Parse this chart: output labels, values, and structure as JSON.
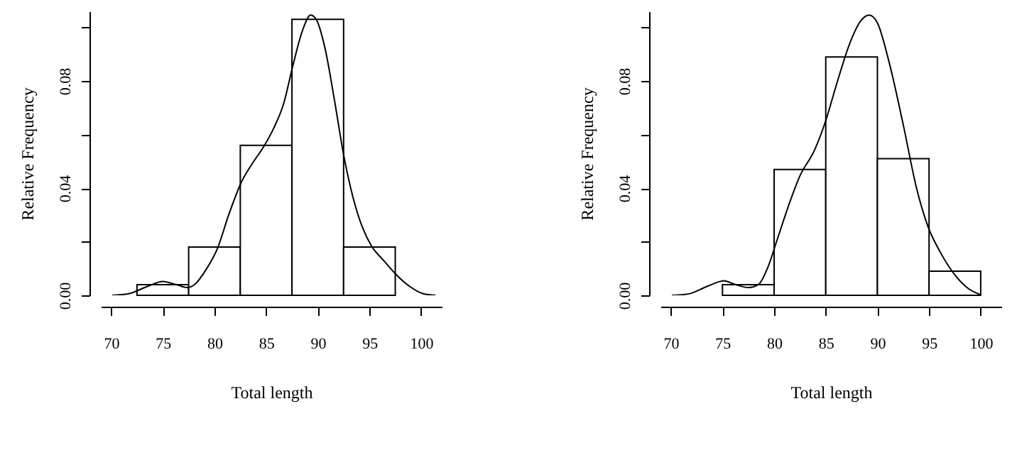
{
  "chart_data": [
    {
      "type": "histogram",
      "xlabel": "Total length",
      "ylabel": "Relative Frequency",
      "color": "#ffffff",
      "bins": [
        72.5,
        77.5,
        82.5,
        87.5,
        92.5,
        97.5
      ],
      "values": [
        0.004,
        0.018,
        0.056,
        0.103,
        0.018
      ],
      "series": [
        {
          "type": "line",
          "color": "#000000",
          "x": [
            70.1,
            71.7,
            73.5,
            75,
            76.2,
            77.4,
            78.1,
            79.2,
            80.3,
            81.4,
            82.6,
            83.7,
            84.8,
            85.7,
            86.7,
            87.6,
            88.5,
            89.3,
            89.8,
            90.7,
            91.6,
            92.5,
            93.4,
            94.3,
            95.2,
            96.4,
            97.5,
            98.9,
            100.2,
            101.4
          ],
          "values": [
            0,
            0.0006,
            0.0033,
            0.0052,
            0.0041,
            0.0029,
            0.0041,
            0.0097,
            0.0176,
            0.0303,
            0.0422,
            0.0494,
            0.0557,
            0.0621,
            0.0716,
            0.0859,
            0.0986,
            0.1046,
            0.1033,
            0.0922,
            0.0732,
            0.0525,
            0.0367,
            0.0256,
            0.0184,
            0.0129,
            0.0081,
            0.0033,
            0.0006,
            0
          ]
        }
      ],
      "xlim": [
        69,
        102
      ],
      "xticks": [
        70,
        75,
        80,
        85,
        90,
        95,
        100
      ],
      "ylim": [
        0,
        0.106
      ],
      "yticks": [
        {
          "value": 0,
          "label": "0.00"
        },
        {
          "value": 0.02,
          "label": null
        },
        {
          "value": 0.04,
          "label": "0.04"
        },
        {
          "value": 0.06,
          "label": null
        },
        {
          "value": 0.08,
          "label": "0.08"
        },
        {
          "value": 0.1,
          "label": null
        }
      ],
      "grid": false
    },
    {
      "type": "histogram",
      "xlabel": "Total length",
      "ylabel": "Relative Frequency",
      "color": "#ffffff",
      "bins": [
        75,
        80,
        85,
        90,
        95,
        100
      ],
      "values": [
        0.004,
        0.047,
        0.089,
        0.051,
        0.009
      ],
      "series": [
        {
          "type": "line",
          "color": "#000000",
          "x": [
            70.1,
            71.7,
            73.5,
            75.1,
            76.2,
            77.5,
            78.5,
            79.4,
            80.3,
            81.4,
            82.5,
            83.9,
            85,
            86.1,
            87.3,
            88.4,
            89.2,
            90,
            91.1,
            92.5,
            93.8,
            94.9,
            96.1,
            97.4,
            98.8,
            100
          ],
          "values": [
            0,
            0.0005,
            0.0033,
            0.0054,
            0.0041,
            0.0029,
            0.0041,
            0.0105,
            0.0208,
            0.0335,
            0.0446,
            0.0541,
            0.0652,
            0.0795,
            0.0938,
            0.1025,
            0.1046,
            0.1017,
            0.0875,
            0.0637,
            0.0398,
            0.0256,
            0.016,
            0.0081,
            0.0025,
            0.0002
          ]
        }
      ],
      "xlim": [
        69,
        102
      ],
      "xticks": [
        70,
        75,
        80,
        85,
        90,
        95,
        100
      ],
      "ylim": [
        0,
        0.106
      ],
      "yticks": [
        {
          "value": 0,
          "label": "0.00"
        },
        {
          "value": 0.02,
          "label": null
        },
        {
          "value": 0.04,
          "label": "0.04"
        },
        {
          "value": 0.06,
          "label": null
        },
        {
          "value": 0.08,
          "label": "0.08"
        },
        {
          "value": 0.1,
          "label": null
        }
      ],
      "grid": false
    }
  ]
}
